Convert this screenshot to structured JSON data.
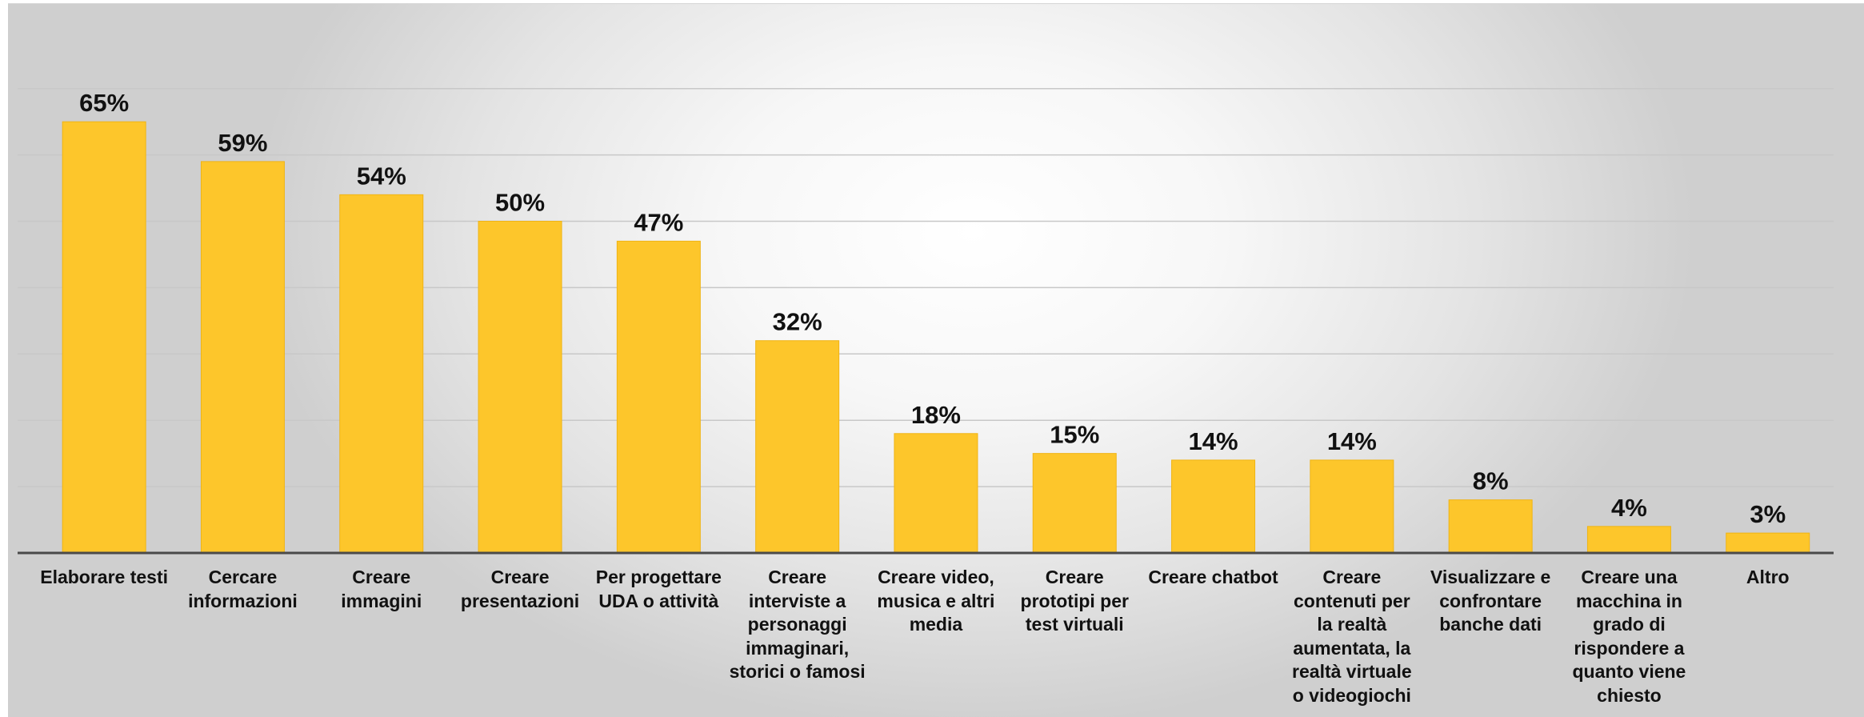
{
  "chart_data": {
    "type": "bar",
    "title": "",
    "xlabel": "",
    "ylabel": "",
    "ylim": [
      0,
      0.7
    ],
    "grid": true,
    "bar_color": "#fdc62b",
    "categories": [
      "Elaborare testi",
      "Cercare informazioni",
      "Creare immagini",
      "Creare presentazioni",
      "Per progettare UDA o attività",
      "Creare interviste a personaggi immaginari, storici o famosi",
      "Creare video, musica e altri media",
      "Creare prototipi per test virtuali",
      "Creare chatbot",
      "Creare contenuti per la realtà aumentata, la realtà virtuale o videogiochi",
      "Visualizzare e confrontare banche dati",
      "Creare una macchina in grado di rispondere a quanto viene chiesto",
      "Altro"
    ],
    "values": [
      0.65,
      0.59,
      0.54,
      0.5,
      0.47,
      0.32,
      0.18,
      0.15,
      0.14,
      0.14,
      0.08,
      0.04,
      0.03
    ],
    "data_labels": [
      "65%",
      "59%",
      "54%",
      "50%",
      "47%",
      "32%",
      "18%",
      "15%",
      "14%",
      "14%",
      "8%",
      "4%",
      "3%"
    ]
  }
}
